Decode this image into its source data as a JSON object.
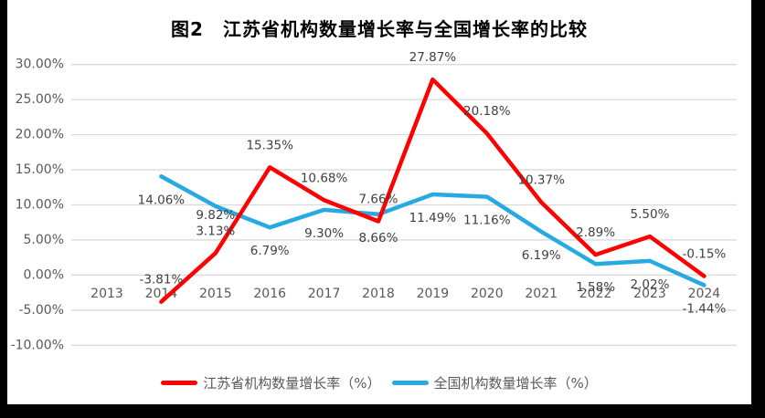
{
  "title": "图2　江苏省机构数量增长率与全国增长率的比较",
  "chart_data": {
    "type": "line",
    "categories": [
      "2013",
      "2014",
      "2015",
      "2016",
      "2017",
      "2018",
      "2019",
      "2020",
      "2021",
      "2022",
      "2023",
      "2024"
    ],
    "series": [
      {
        "name": "江苏省机构数量增长率（%）",
        "color": "#FE0000",
        "values": [
          null,
          -3.81,
          3.13,
          15.35,
          10.68,
          7.66,
          27.87,
          20.18,
          10.37,
          2.89,
          5.5,
          -0.15
        ],
        "label_dy": -24,
        "label_dy_overrides": {}
      },
      {
        "name": "全国机构数量增长率（%）",
        "color": "#27AAE1",
        "values": [
          null,
          14.06,
          9.82,
          6.79,
          9.3,
          8.66,
          11.49,
          11.16,
          6.19,
          1.58,
          2.02,
          -1.44
        ],
        "label_dy": 26,
        "label_dy_overrides": {
          "2": 10
        }
      }
    ],
    "label_format": "0.00%",
    "ylim": [
      -10,
      30
    ],
    "ytick_step": 5,
    "ytick_labels": [
      "30.00%",
      "25.00%",
      "20.00%",
      "15.00%",
      "10.00%",
      "5.00%",
      "0.00%",
      "-5.00%",
      "-10.00%"
    ],
    "grid": "horizontal",
    "legend_position": "bottom",
    "colors": {
      "gridline": "#D9D9D9",
      "axis_text": "#595959",
      "data_label_text": "#404040",
      "plot_background": "#FFFFFF",
      "frame_background": "#000000"
    }
  }
}
